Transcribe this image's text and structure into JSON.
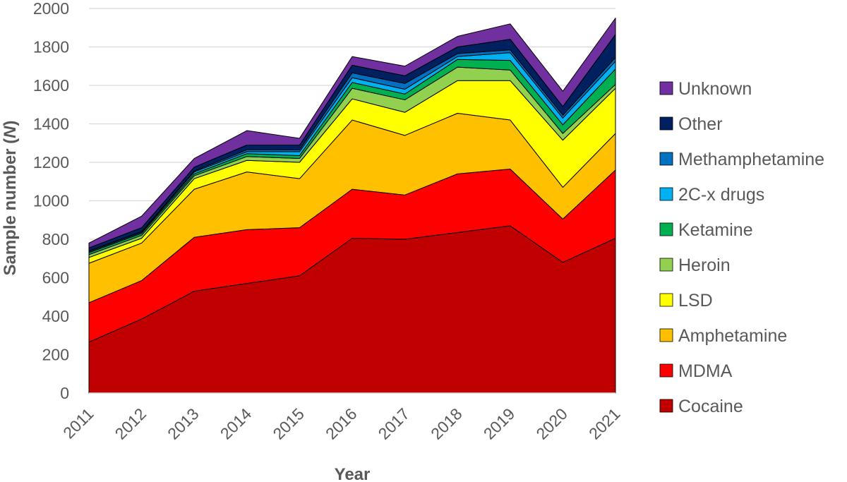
{
  "chart_data": {
    "type": "area",
    "stacked": true,
    "xlabel": "Year",
    "ylabel_main": "Sample number (",
    "ylabel_italic": "N",
    "ylabel_close": ")",
    "ylim": [
      0,
      2000
    ],
    "yticks": [
      "0",
      "200",
      "400",
      "600",
      "800",
      "1000",
      "1200",
      "1400",
      "1600",
      "1800",
      "2000"
    ],
    "categories": [
      "2011",
      "2012",
      "2013",
      "2014",
      "2015",
      "2016",
      "2017",
      "2018",
      "2019",
      "2020",
      "2021"
    ],
    "grid": true,
    "legend_position": "right",
    "series": [
      {
        "name": "Cocaine",
        "color": "#C00000",
        "values": [
          265,
          385,
          530,
          570,
          610,
          805,
          800,
          835,
          870,
          680,
          805
        ]
      },
      {
        "name": "MDMA",
        "color": "#FF0000",
        "values": [
          205,
          200,
          280,
          280,
          250,
          255,
          230,
          305,
          295,
          225,
          355
        ]
      },
      {
        "name": "Amphetamine",
        "color": "#FFC000",
        "values": [
          205,
          195,
          250,
          300,
          255,
          360,
          310,
          315,
          255,
          165,
          190
        ]
      },
      {
        "name": "LSD",
        "color": "#FFFF00",
        "values": [
          30,
          25,
          55,
          60,
          85,
          110,
          120,
          170,
          205,
          245,
          235
        ]
      },
      {
        "name": "Heroin",
        "color": "#92D050",
        "values": [
          15,
          15,
          15,
          20,
          20,
          55,
          65,
          70,
          55,
          35,
          20
        ]
      },
      {
        "name": "Ketamine",
        "color": "#00B050",
        "values": [
          10,
          10,
          10,
          15,
          15,
          30,
          30,
          40,
          50,
          45,
          80
        ]
      },
      {
        "name": "2C-x drugs",
        "color": "#00B0F0",
        "values": [
          5,
          5,
          10,
          10,
          20,
          25,
          25,
          15,
          40,
          35,
          40
        ]
      },
      {
        "name": "Methamphetamine",
        "color": "#0070C0",
        "values": [
          5,
          5,
          5,
          10,
          10,
          25,
          30,
          15,
          15,
          15,
          20
        ]
      },
      {
        "name": "Other",
        "color": "#002060",
        "values": [
          15,
          20,
          20,
          25,
          25,
          40,
          40,
          35,
          55,
          45,
          120
        ]
      },
      {
        "name": "Unknown",
        "color": "#7030A0",
        "values": [
          25,
          60,
          45,
          75,
          35,
          45,
          50,
          55,
          80,
          80,
          85
        ]
      }
    ]
  }
}
